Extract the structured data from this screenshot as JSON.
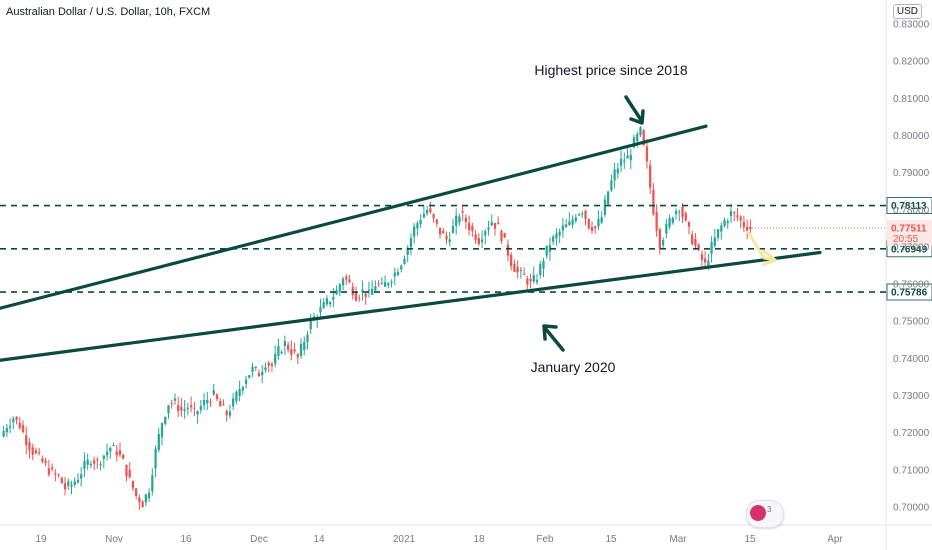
{
  "header": {
    "title": "Australian Dollar / U.S. Dollar, 10h, FXCM",
    "currency": "USD"
  },
  "chart_data": {
    "type": "candlestick",
    "title": "Australian Dollar / U.S. Dollar, 10h, FXCM",
    "y_axis": {
      "ticks": [
        "0.83000",
        "0.82000",
        "0.81000",
        "0.80000",
        "0.79000",
        "0.78000",
        "0.77000",
        "0.76000",
        "0.75000",
        "0.74000",
        "0.73000",
        "0.72000",
        "0.71000",
        "0.70000"
      ],
      "tick_values": [
        0.83,
        0.82,
        0.81,
        0.8,
        0.79,
        0.78,
        0.77,
        0.76,
        0.75,
        0.74,
        0.73,
        0.72,
        0.71,
        0.7
      ],
      "range": [
        0.696,
        0.834
      ]
    },
    "x_axis": {
      "ticks": [
        "19",
        "Nov",
        "16",
        "Dec",
        "14",
        "2021",
        "18",
        "Feb",
        "15",
        "Mar",
        "15",
        "Apr"
      ]
    },
    "price_path": [
      [
        0.719,
        0.722
      ],
      [
        0.722,
        0.724
      ],
      [
        0.724,
        0.722
      ],
      [
        0.722,
        0.718
      ],
      [
        0.718,
        0.715
      ],
      [
        0.715,
        0.713
      ],
      [
        0.713,
        0.711
      ],
      [
        0.711,
        0.709
      ],
      [
        0.709,
        0.708
      ],
      [
        0.708,
        0.705
      ],
      [
        0.705,
        0.706
      ],
      [
        0.706,
        0.708
      ],
      [
        0.708,
        0.711
      ],
      [
        0.711,
        0.713
      ],
      [
        0.713,
        0.712
      ],
      [
        0.712,
        0.714
      ],
      [
        0.714,
        0.716
      ],
      [
        0.716,
        0.715
      ],
      [
        0.715,
        0.712
      ],
      [
        0.712,
        0.707
      ],
      [
        0.707,
        0.703
      ],
      [
        0.703,
        0.701
      ],
      [
        0.701,
        0.705
      ],
      [
        0.705,
        0.715
      ],
      [
        0.715,
        0.723
      ],
      [
        0.723,
        0.728
      ],
      [
        0.728,
        0.728
      ],
      [
        0.728,
        0.726
      ],
      [
        0.726,
        0.727
      ],
      [
        0.727,
        0.725
      ],
      [
        0.725,
        0.727
      ],
      [
        0.727,
        0.729
      ],
      [
        0.729,
        0.73
      ],
      [
        0.73,
        0.727
      ],
      [
        0.727,
        0.725
      ],
      [
        0.725,
        0.728
      ],
      [
        0.728,
        0.732
      ],
      [
        0.732,
        0.735
      ],
      [
        0.735,
        0.737
      ],
      [
        0.737,
        0.736
      ],
      [
        0.736,
        0.739
      ],
      [
        0.739,
        0.738
      ],
      [
        0.738,
        0.742
      ],
      [
        0.742,
        0.744
      ],
      [
        0.744,
        0.742
      ],
      [
        0.742,
        0.74
      ],
      [
        0.74,
        0.745
      ],
      [
        0.745,
        0.75
      ],
      [
        0.75,
        0.752
      ],
      [
        0.752,
        0.754
      ],
      [
        0.754,
        0.756
      ],
      [
        0.756,
        0.758
      ],
      [
        0.758,
        0.762
      ],
      [
        0.762,
        0.76
      ],
      [
        0.76,
        0.757
      ],
      [
        0.757,
        0.758
      ],
      [
        0.758,
        0.757
      ],
      [
        0.757,
        0.76
      ],
      [
        0.76,
        0.759
      ],
      [
        0.759,
        0.761
      ],
      [
        0.761,
        0.763
      ],
      [
        0.763,
        0.766
      ],
      [
        0.766,
        0.77
      ],
      [
        0.77,
        0.775
      ],
      [
        0.775,
        0.778
      ],
      [
        0.778,
        0.78
      ],
      [
        0.78,
        0.777
      ],
      [
        0.777,
        0.774
      ],
      [
        0.774,
        0.772
      ],
      [
        0.772,
        0.775
      ],
      [
        0.775,
        0.779
      ],
      [
        0.779,
        0.777
      ],
      [
        0.777,
        0.774
      ],
      [
        0.774,
        0.772
      ],
      [
        0.772,
        0.775
      ],
      [
        0.775,
        0.777
      ],
      [
        0.777,
        0.775
      ],
      [
        0.775,
        0.771
      ],
      [
        0.771,
        0.766
      ],
      [
        0.766,
        0.763
      ],
      [
        0.763,
        0.762
      ],
      [
        0.762,
        0.76
      ],
      [
        0.76,
        0.762
      ],
      [
        0.762,
        0.767
      ],
      [
        0.767,
        0.771
      ],
      [
        0.771,
        0.773
      ],
      [
        0.773,
        0.775
      ],
      [
        0.775,
        0.776
      ],
      [
        0.776,
        0.779
      ],
      [
        0.779,
        0.78
      ],
      [
        0.78,
        0.776
      ],
      [
        0.776,
        0.775
      ],
      [
        0.775,
        0.778
      ],
      [
        0.778,
        0.785
      ],
      [
        0.785,
        0.79
      ],
      [
        0.79,
        0.793
      ],
      [
        0.793,
        0.794
      ],
      [
        0.794,
        0.798
      ],
      [
        0.798,
        0.801
      ],
      [
        0.801,
        0.792
      ],
      [
        0.792,
        0.78
      ],
      [
        0.78,
        0.771
      ],
      [
        0.771,
        0.775
      ],
      [
        0.775,
        0.779
      ],
      [
        0.779,
        0.781
      ],
      [
        0.781,
        0.776
      ],
      [
        0.776,
        0.772
      ],
      [
        0.772,
        0.768
      ],
      [
        0.768,
        0.765
      ],
      [
        0.765,
        0.77
      ],
      [
        0.77,
        0.774
      ],
      [
        0.774,
        0.777
      ],
      [
        0.777,
        0.779
      ],
      [
        0.779,
        0.778
      ],
      [
        0.778,
        0.776
      ],
      [
        0.776,
        0.7751
      ]
    ],
    "price_levels": [
      {
        "value": 0.78113,
        "label": "0.78113",
        "color": "#0b4a3e",
        "style": "dashed"
      },
      {
        "value": 0.76949,
        "label": "0.76949",
        "color": "#0b4a3e",
        "style": "dashed"
      },
      {
        "value": 0.75786,
        "label": "0.75786",
        "color": "#0b4a3e",
        "style": "dashed"
      }
    ],
    "current_price": {
      "value": 0.77511,
      "label": "0.77511",
      "countdown": "20:55",
      "color": "#ef5350"
    },
    "trendlines": [
      {
        "name": "upper",
        "from": [
          "19 Oct",
          0.7535
        ],
        "to": [
          "Mar 5",
          0.8025
        ]
      },
      {
        "name": "lower",
        "from": [
          "Oct",
          0.7395
        ],
        "to": [
          "Mar 25",
          0.7685
        ]
      }
    ],
    "annotations": [
      {
        "text": "Highest price since 2018"
      },
      {
        "text": "January 2020"
      }
    ],
    "colors": {
      "up": "#26a69a",
      "down": "#ef5350",
      "trend": "#0b4a3e",
      "projection": "#f5e7a1"
    }
  },
  "logo": {
    "name": "tradingview-logo",
    "count": "3"
  }
}
